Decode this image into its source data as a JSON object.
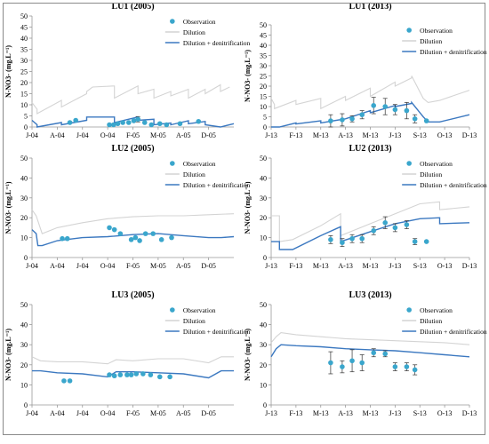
{
  "colors": {
    "observation": "#3aa6cc",
    "dilution": "#d4d4d4",
    "dilution_denitrification": "#3b78c0",
    "axis": "#999999",
    "text": "#000000"
  },
  "chart_data": [
    {
      "type": "line",
      "title": "LU1 (2005)",
      "ylabel": "N-NO3- (mg.L⁻¹)",
      "ylim": [
        0,
        50
      ],
      "yticks": [
        0,
        5,
        10,
        15,
        20,
        25,
        30,
        35,
        40,
        45,
        50
      ],
      "xlim": [
        0,
        24
      ],
      "xticks": [
        {
          "x": 0,
          "label": "J-04"
        },
        {
          "x": 3,
          "label": "A-04"
        },
        {
          "x": 6,
          "label": "J-04"
        },
        {
          "x": 9,
          "label": "O-04"
        },
        {
          "x": 12,
          "label": "F-05"
        },
        {
          "x": 15,
          "label": "M-05"
        },
        {
          "x": 18,
          "label": "A-05"
        },
        {
          "x": 21,
          "label": "D-05"
        }
      ],
      "legend_position": "top-right",
      "series": [
        {
          "name": "Observation",
          "kind": "points",
          "x": [
            4.5,
            5.2,
            9.2,
            9.7,
            10.2,
            10.8,
            11.5,
            12.1,
            12.6,
            13.4,
            14.2,
            15.2,
            16.0,
            17.6,
            19.8
          ],
          "y": [
            2.0,
            3.0,
            1.0,
            1.0,
            1.5,
            2.0,
            2.0,
            2.8,
            3.5,
            2.0,
            1.0,
            1.5,
            1.0,
            1.5,
            2.5
          ],
          "err": [
            0,
            0,
            0,
            0,
            0,
            0,
            0,
            0,
            1.2,
            0,
            0,
            0,
            0,
            0,
            0
          ]
        },
        {
          "name": "Dilution",
          "kind": "line",
          "x": [
            0,
            0.6,
            0.6,
            3.5,
            3.5,
            6.5,
            6.5,
            7.2,
            9.8,
            9.8,
            12.6,
            12.6,
            14.5,
            14.5,
            16.5,
            16.5,
            18.6,
            18.6,
            20.6,
            20.6,
            22.4,
            22.4,
            23.5
          ],
          "y": [
            11,
            8,
            6,
            12,
            9,
            15,
            16,
            18,
            18.5,
            13,
            18.5,
            15,
            17,
            13,
            16,
            14,
            17,
            13,
            17,
            15,
            19,
            16,
            18
          ]
        },
        {
          "name": "Dilution + denitrification",
          "kind": "line",
          "x": [
            0,
            0.6,
            0.6,
            3.5,
            3.5,
            6.5,
            6.5,
            9.8,
            9.8,
            12.6,
            12.6,
            14.5,
            14.5,
            16.5,
            16.5,
            18.6,
            18.6,
            20.6,
            20.6,
            22.4,
            22.4,
            24
          ],
          "y": [
            3,
            1,
            0,
            2,
            1,
            3,
            4.5,
            4.5,
            2,
            4.5,
            3,
            3.5,
            1,
            1.8,
            1,
            2.8,
            1.5,
            2.5,
            1,
            0,
            0,
            1.5
          ]
        }
      ]
    },
    {
      "type": "line",
      "title": "LU1 (2013)",
      "ylabel": "N-NO3- (mg.L⁻¹)",
      "ylim": [
        0,
        50
      ],
      "yticks": [
        0,
        5,
        10,
        15,
        20,
        25,
        30,
        35,
        40,
        45,
        50
      ],
      "xlim": [
        0,
        12
      ],
      "xticks": [
        {
          "x": 0,
          "label": "J-13"
        },
        {
          "x": 1.5,
          "label": "F-13"
        },
        {
          "x": 3,
          "label": "M-13"
        },
        {
          "x": 4.5,
          "label": "A-13"
        },
        {
          "x": 6,
          "label": "M-13"
        },
        {
          "x": 7.5,
          "label": "J-13"
        },
        {
          "x": 9,
          "label": "S-13"
        },
        {
          "x": 10.5,
          "label": "O-13"
        },
        {
          "x": 12,
          "label": "D-13"
        }
      ],
      "legend_position": "top-right",
      "series": [
        {
          "name": "Observation",
          "kind": "points",
          "x": [
            3.6,
            4.3,
            4.9,
            5.5,
            6.2,
            6.9,
            7.5,
            8.2,
            8.7,
            9.4
          ],
          "y": [
            3.0,
            3.5,
            4.0,
            6.0,
            10.5,
            10.0,
            8.5,
            8.0,
            4.0,
            3.0
          ],
          "err": [
            3.0,
            3.0,
            1.5,
            2.0,
            4.0,
            4.0,
            2.5,
            4.0,
            2.0,
            0
          ]
        },
        {
          "name": "Dilution",
          "kind": "line",
          "x": [
            0,
            0.2,
            0.2,
            1.5,
            1.5,
            3.0,
            3.0,
            4.5,
            4.5,
            6.0,
            6.0,
            7.5,
            7.5,
            8.5,
            8.5,
            9.2,
            9.5,
            10.2,
            12
          ],
          "y": [
            14,
            11,
            9,
            13,
            11,
            14,
            9,
            15,
            13,
            19,
            15,
            22,
            20,
            24,
            25,
            14,
            12,
            13,
            18
          ]
        },
        {
          "name": "Dilution + denitrification",
          "kind": "line",
          "x": [
            0,
            0.5,
            0.5,
            1.5,
            1.5,
            3.0,
            3.0,
            4.5,
            4.5,
            6.0,
            6.0,
            7.5,
            7.5,
            8.5,
            8.5,
            9.2,
            9.5,
            10.2,
            12
          ],
          "y": [
            0,
            0,
            0,
            2,
            1.5,
            3,
            2,
            4,
            4,
            8,
            7,
            10.5,
            10,
            11.5,
            12,
            5,
            2.5,
            2.5,
            6
          ]
        }
      ]
    },
    {
      "type": "line",
      "title": "LU2 (2005)",
      "ylabel": "N-NO3- (mg.L⁻¹)",
      "ylim": [
        0,
        50
      ],
      "yticks": [
        0,
        10,
        20,
        30,
        40,
        50
      ],
      "xlim": [
        0,
        24
      ],
      "xticks": [
        {
          "x": 0,
          "label": "J-04"
        },
        {
          "x": 3,
          "label": "A-04"
        },
        {
          "x": 6,
          "label": "J-04"
        },
        {
          "x": 9,
          "label": "O-04"
        },
        {
          "x": 12,
          "label": "F-05"
        },
        {
          "x": 15,
          "label": "M-05"
        },
        {
          "x": 18,
          "label": "A-05"
        },
        {
          "x": 21,
          "label": "D-05"
        }
      ],
      "legend_position": "top-right",
      "series": [
        {
          "name": "Observation",
          "kind": "points",
          "x": [
            3.6,
            4.2,
            9.2,
            9.8,
            10.5,
            11.8,
            12.3,
            12.8,
            13.5,
            14.4,
            15.4,
            16.6
          ],
          "y": [
            9.5,
            9.5,
            15.0,
            14.0,
            12.0,
            9.0,
            10.0,
            8.5,
            12.0,
            12.0,
            9.0,
            10.0
          ],
          "err": [
            0,
            0,
            0,
            0,
            0,
            0,
            0,
            0,
            0,
            0,
            0,
            0
          ]
        },
        {
          "name": "Dilution",
          "kind": "line",
          "x": [
            0,
            0.5,
            1.2,
            3,
            6,
            9,
            12,
            15,
            18,
            21,
            24
          ],
          "y": [
            24,
            21,
            12,
            15,
            17.5,
            19.5,
            20.5,
            21,
            21,
            21.5,
            22
          ]
        },
        {
          "name": "Dilution + denitrification",
          "kind": "line",
          "x": [
            0,
            0.5,
            0.7,
            1.2,
            3,
            6,
            9,
            12,
            15,
            18,
            21,
            22.5,
            24
          ],
          "y": [
            14,
            12,
            6,
            6,
            8.5,
            10,
            10.5,
            11.5,
            12,
            11,
            10,
            10,
            10.5
          ]
        }
      ]
    },
    {
      "type": "line",
      "title": "LU2 (2013)",
      "ylabel": "N-NO3- (mg.L⁻¹)",
      "ylim": [
        0,
        50
      ],
      "yticks": [
        0,
        10,
        20,
        30,
        40,
        50
      ],
      "xlim": [
        0,
        12
      ],
      "xticks": [
        {
          "x": 0,
          "label": "J-13"
        },
        {
          "x": 1.5,
          "label": "F-13"
        },
        {
          "x": 3,
          "label": "M-13"
        },
        {
          "x": 4.5,
          "label": "A-13"
        },
        {
          "x": 6,
          "label": "M-13"
        },
        {
          "x": 7.5,
          "label": "J-13"
        },
        {
          "x": 9,
          "label": "S-13"
        },
        {
          "x": 10.5,
          "label": "O-13"
        },
        {
          "x": 12,
          "label": "D-13"
        }
      ],
      "legend_position": "top-right",
      "series": [
        {
          "name": "Observation",
          "kind": "points",
          "x": [
            3.6,
            4.3,
            4.9,
            5.5,
            6.2,
            6.9,
            7.5,
            8.2,
            8.7,
            9.4
          ],
          "y": [
            9.0,
            7.5,
            9.5,
            9.5,
            13.5,
            17.5,
            15.0,
            16.5,
            8.0,
            8.0
          ],
          "err": [
            2.0,
            2.0,
            2.0,
            2.0,
            2.0,
            3.0,
            2.0,
            2.0,
            1.5,
            0
          ]
        },
        {
          "name": "Dilution",
          "kind": "line",
          "x": [
            0,
            0.5,
            0.5,
            1.3,
            3,
            4.2,
            4.2,
            6,
            7.5,
            9,
            10.2,
            10.2,
            12
          ],
          "y": [
            21,
            21,
            8,
            9,
            16,
            22,
            11,
            17,
            22,
            27,
            28,
            24,
            25.5
          ]
        },
        {
          "name": "Dilution + denitrification",
          "kind": "line",
          "x": [
            0,
            0.5,
            0.5,
            1.3,
            3,
            4.2,
            4.2,
            6,
            7.5,
            9,
            10.2,
            10.2,
            12
          ],
          "y": [
            8,
            8,
            4,
            4,
            11,
            15.5,
            8,
            13,
            17,
            19.5,
            20,
            17,
            17.5
          ]
        }
      ]
    },
    {
      "type": "line",
      "title": "LU3 (2005)",
      "ylabel": "N-NO3- (mg.L⁻¹)",
      "ylim": [
        0,
        50
      ],
      "yticks": [
        0,
        10,
        20,
        30,
        40,
        50
      ],
      "xlim": [
        0,
        24
      ],
      "xticks": [
        {
          "x": 0,
          "label": "J-04"
        },
        {
          "x": 3,
          "label": "A-04"
        },
        {
          "x": 6,
          "label": "J-04"
        },
        {
          "x": 9,
          "label": "O-04"
        },
        {
          "x": 12,
          "label": "F-05"
        },
        {
          "x": 15,
          "label": "M-05"
        },
        {
          "x": 18,
          "label": "A-05"
        },
        {
          "x": 21,
          "label": "D-05"
        }
      ],
      "legend_position": "top-right",
      "series": [
        {
          "name": "Observation",
          "kind": "points",
          "x": [
            3.8,
            4.5,
            9.2,
            9.8,
            10.5,
            11.3,
            11.8,
            12.4,
            13.2,
            14.1,
            15.2,
            16.4
          ],
          "y": [
            12.0,
            12.0,
            15.0,
            14.5,
            15.0,
            15.0,
            15.0,
            15.5,
            15.5,
            15.0,
            14.0,
            14.0
          ],
          "err": [
            0,
            0,
            0,
            0,
            0,
            0,
            0,
            0,
            0,
            0,
            0,
            0
          ]
        },
        {
          "name": "Dilution",
          "kind": "line",
          "x": [
            0,
            1,
            3,
            6,
            9,
            10,
            12,
            15,
            18,
            21,
            22.5,
            24
          ],
          "y": [
            24,
            22,
            21.5,
            21.5,
            20.5,
            22.5,
            22,
            23,
            23,
            21,
            24,
            24
          ]
        },
        {
          "name": "Dilution + denitrification",
          "kind": "line",
          "x": [
            0,
            1,
            3,
            6,
            9,
            10,
            12,
            15,
            18,
            21,
            22.5,
            24
          ],
          "y": [
            17,
            17,
            16,
            15.5,
            14,
            16.5,
            16.5,
            16,
            15.5,
            13.5,
            17,
            17
          ]
        }
      ]
    },
    {
      "type": "line",
      "title": "LU3 (2013)",
      "ylabel": "N-NO3- (mg.L⁻¹)",
      "ylim": [
        0,
        50
      ],
      "yticks": [
        0,
        10,
        20,
        30,
        40,
        50
      ],
      "xlim": [
        0,
        12
      ],
      "xticks": [
        {
          "x": 0,
          "label": "J-13"
        },
        {
          "x": 1.5,
          "label": "F-13"
        },
        {
          "x": 3,
          "label": "M-13"
        },
        {
          "x": 4.5,
          "label": "A-13"
        },
        {
          "x": 6,
          "label": "M-13"
        },
        {
          "x": 7.5,
          "label": "J-13"
        },
        {
          "x": 9,
          "label": "S-13"
        },
        {
          "x": 10.5,
          "label": "O-13"
        },
        {
          "x": 12,
          "label": "D-13"
        }
      ],
      "legend_position": "top-right",
      "series": [
        {
          "name": "Observation",
          "kind": "points",
          "x": [
            3.6,
            4.3,
            4.9,
            5.5,
            6.2,
            6.9,
            7.5,
            8.2,
            8.7
          ],
          "y": [
            21.0,
            19.0,
            22.0,
            21.0,
            26.0,
            25.5,
            19.0,
            19.0,
            17.5
          ],
          "err": [
            5.5,
            3.0,
            5.5,
            4.0,
            2.0,
            1.5,
            2.0,
            2.0,
            2.5
          ]
        },
        {
          "name": "Dilution",
          "kind": "line",
          "x": [
            0,
            0.3,
            0.6,
            1.5,
            3,
            4.5,
            6,
            7.5,
            9,
            10.5,
            12
          ],
          "y": [
            31,
            34,
            36,
            35,
            34,
            33,
            32.5,
            32,
            31.5,
            31,
            30
          ]
        },
        {
          "name": "Dilution + denitrification",
          "kind": "line",
          "x": [
            0,
            0.3,
            0.6,
            1.5,
            3,
            4.5,
            6,
            7.5,
            9,
            10.5,
            12
          ],
          "y": [
            24,
            28,
            30,
            29.5,
            29,
            28,
            27.5,
            27,
            26,
            25,
            24
          ]
        }
      ]
    }
  ]
}
